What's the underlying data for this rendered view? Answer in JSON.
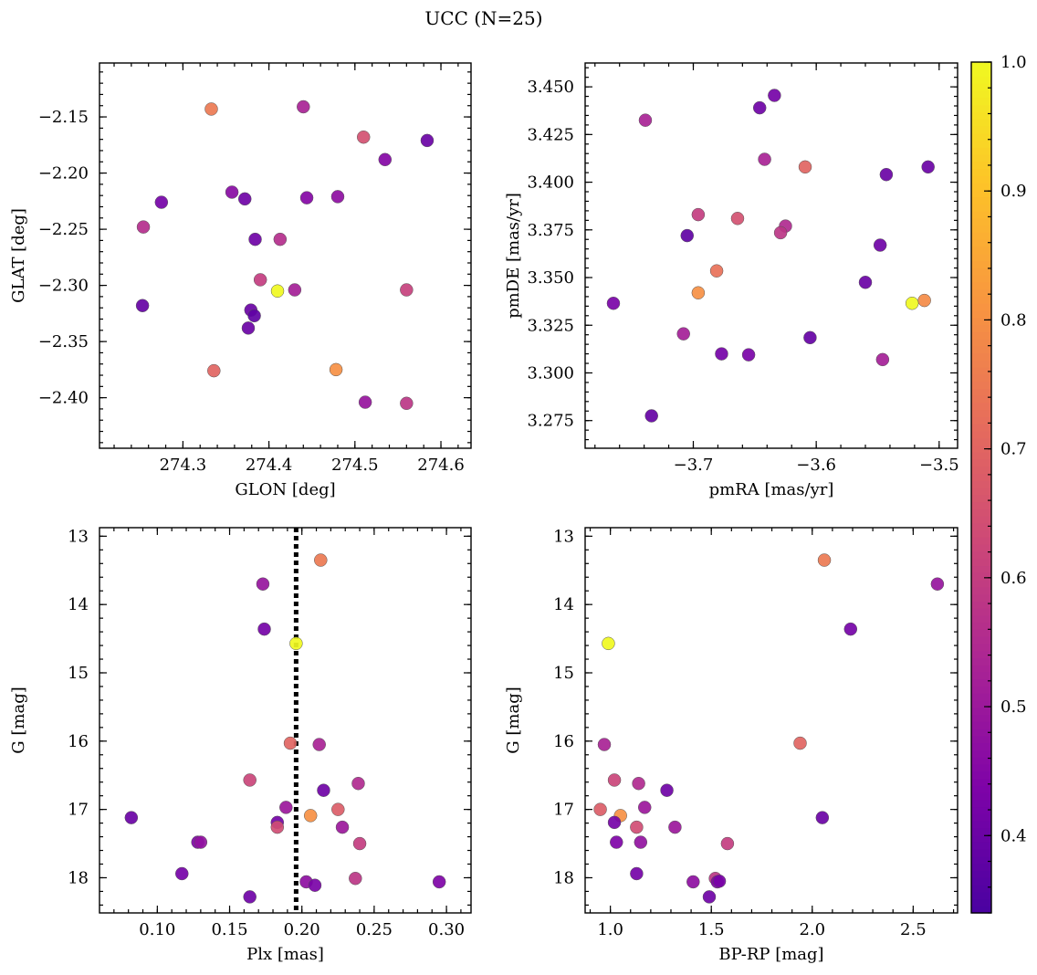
{
  "suptitle": "UCC (N=25)",
  "colorbar": {
    "cmap": "plasma",
    "range": [
      0.34,
      1.0
    ],
    "ticks": [
      0.4,
      0.5,
      0.6,
      0.7,
      0.8,
      0.9,
      1.0
    ],
    "tick_labels": [
      "0.4",
      "0.5",
      "0.6",
      "0.7",
      "0.8",
      "0.9",
      "1.0"
    ]
  },
  "chart_data": [
    {
      "type": "scatter",
      "xlabel": "GLON [deg]",
      "ylabel": "GLAT [deg]",
      "xlim": [
        274.203,
        274.635
      ],
      "ylim": [
        -2.445,
        -2.102
      ],
      "y_inverted": false,
      "xticks": [
        274.3,
        274.4,
        274.5,
        274.6
      ],
      "xtick_labels": [
        "274.3",
        "274.4",
        "274.5",
        "274.6"
      ],
      "yticks": [
        -2.15,
        -2.2,
        -2.25,
        -2.3,
        -2.35,
        -2.4
      ],
      "ytick_labels": [
        "−2.15",
        "−2.20",
        "−2.25",
        "−2.30",
        "−2.35",
        "−2.40"
      ],
      "points": [
        {
          "x": 274.333,
          "y": -2.143,
          "c": 0.75
        },
        {
          "x": 274.44,
          "y": -2.141,
          "c": 0.53
        },
        {
          "x": 274.51,
          "y": -2.168,
          "c": 0.65
        },
        {
          "x": 274.584,
          "y": -2.171,
          "c": 0.4
        },
        {
          "x": 274.535,
          "y": -2.188,
          "c": 0.45
        },
        {
          "x": 274.357,
          "y": -2.217,
          "c": 0.46
        },
        {
          "x": 274.372,
          "y": -2.223,
          "c": 0.41
        },
        {
          "x": 274.444,
          "y": -2.222,
          "c": 0.45
        },
        {
          "x": 274.48,
          "y": -2.221,
          "c": 0.47
        },
        {
          "x": 274.275,
          "y": -2.226,
          "c": 0.42
        },
        {
          "x": 274.254,
          "y": -2.248,
          "c": 0.56
        },
        {
          "x": 274.384,
          "y": -2.259,
          "c": 0.41
        },
        {
          "x": 274.413,
          "y": -2.259,
          "c": 0.56
        },
        {
          "x": 274.39,
          "y": -2.295,
          "c": 0.6
        },
        {
          "x": 274.41,
          "y": -2.305,
          "c": 1.0
        },
        {
          "x": 274.43,
          "y": -2.304,
          "c": 0.52
        },
        {
          "x": 274.56,
          "y": -2.304,
          "c": 0.61
        },
        {
          "x": 274.253,
          "y": -2.318,
          "c": 0.39
        },
        {
          "x": 274.379,
          "y": -2.322,
          "c": 0.4
        },
        {
          "x": 274.383,
          "y": -2.327,
          "c": 0.38
        },
        {
          "x": 274.376,
          "y": -2.338,
          "c": 0.4
        },
        {
          "x": 274.336,
          "y": -2.376,
          "c": 0.7
        },
        {
          "x": 274.478,
          "y": -2.375,
          "c": 0.8
        },
        {
          "x": 274.512,
          "y": -2.404,
          "c": 0.49
        },
        {
          "x": 274.56,
          "y": -2.405,
          "c": 0.58
        }
      ]
    },
    {
      "type": "scatter",
      "xlabel": "pmRA [mas/yr]",
      "ylabel": "pmDE [mas/yr]",
      "xlim": [
        -3.788,
        -3.485
      ],
      "ylim": [
        3.2605,
        3.4625
      ],
      "y_inverted": false,
      "xticks": [
        -3.7,
        -3.6,
        -3.5
      ],
      "xtick_labels": [
        "−3.7",
        "−3.6",
        "−3.5"
      ],
      "yticks": [
        3.275,
        3.3,
        3.325,
        3.35,
        3.375,
        3.4,
        3.425,
        3.45
      ],
      "ytick_labels": [
        "3.275",
        "3.300",
        "3.325",
        "3.350",
        "3.375",
        "3.400",
        "3.425",
        "3.450"
      ],
      "points": [
        {
          "x": -3.634,
          "y": 3.4455,
          "c": 0.42
        },
        {
          "x": -3.646,
          "y": 3.439,
          "c": 0.41
        },
        {
          "x": -3.739,
          "y": 3.4325,
          "c": 0.53
        },
        {
          "x": -3.642,
          "y": 3.412,
          "c": 0.53
        },
        {
          "x": -3.609,
          "y": 3.408,
          "c": 0.7
        },
        {
          "x": -3.509,
          "y": 3.408,
          "c": 0.4
        },
        {
          "x": -3.543,
          "y": 3.404,
          "c": 0.4
        },
        {
          "x": -3.696,
          "y": 3.383,
          "c": 0.6
        },
        {
          "x": -3.664,
          "y": 3.381,
          "c": 0.65
        },
        {
          "x": -3.625,
          "y": 3.377,
          "c": 0.55
        },
        {
          "x": -3.629,
          "y": 3.3735,
          "c": 0.58
        },
        {
          "x": -3.705,
          "y": 3.372,
          "c": 0.38
        },
        {
          "x": -3.548,
          "y": 3.367,
          "c": 0.41
        },
        {
          "x": -3.681,
          "y": 3.3535,
          "c": 0.73
        },
        {
          "x": -3.56,
          "y": 3.3475,
          "c": 0.4
        },
        {
          "x": -3.696,
          "y": 3.342,
          "c": 0.8
        },
        {
          "x": -3.512,
          "y": 3.338,
          "c": 0.79
        },
        {
          "x": -3.522,
          "y": 3.3365,
          "c": 1.0
        },
        {
          "x": -3.765,
          "y": 3.3365,
          "c": 0.43
        },
        {
          "x": -3.708,
          "y": 3.3205,
          "c": 0.52
        },
        {
          "x": -3.605,
          "y": 3.3185,
          "c": 0.39
        },
        {
          "x": -3.677,
          "y": 3.31,
          "c": 0.42
        },
        {
          "x": -3.655,
          "y": 3.3095,
          "c": 0.43
        },
        {
          "x": -3.546,
          "y": 3.307,
          "c": 0.52
        },
        {
          "x": -3.734,
          "y": 3.2775,
          "c": 0.39
        }
      ]
    },
    {
      "type": "scatter",
      "xlabel": "Plx [mas]",
      "ylabel": "G [mag]",
      "xlim": [
        0.06,
        0.317
      ],
      "ylim": [
        18.515,
        12.875
      ],
      "y_inverted": true,
      "xticks": [
        0.1,
        0.15,
        0.2,
        0.25,
        0.3
      ],
      "xtick_labels": [
        "0.10",
        "0.15",
        "0.20",
        "0.25",
        "0.30"
      ],
      "yticks": [
        13,
        14,
        15,
        16,
        17,
        18
      ],
      "ytick_labels": [
        "13",
        "14",
        "15",
        "16",
        "17",
        "18"
      ],
      "vline": {
        "x": 0.196,
        "style": "dotted"
      },
      "points": [
        {
          "x": 0.213,
          "y": 13.35,
          "c": 0.75
        },
        {
          "x": 0.173,
          "y": 13.7,
          "c": 0.49
        },
        {
          "x": 0.174,
          "y": 14.36,
          "c": 0.42
        },
        {
          "x": 0.196,
          "y": 14.57,
          "c": 1.0
        },
        {
          "x": 0.192,
          "y": 16.03,
          "c": 0.7
        },
        {
          "x": 0.212,
          "y": 16.05,
          "c": 0.53
        },
        {
          "x": 0.164,
          "y": 16.57,
          "c": 0.62
        },
        {
          "x": 0.239,
          "y": 16.62,
          "c": 0.55
        },
        {
          "x": 0.215,
          "y": 16.72,
          "c": 0.41
        },
        {
          "x": 0.189,
          "y": 16.97,
          "c": 0.5
        },
        {
          "x": 0.225,
          "y": 17.0,
          "c": 0.68
        },
        {
          "x": 0.206,
          "y": 17.09,
          "c": 0.8
        },
        {
          "x": 0.082,
          "y": 17.12,
          "c": 0.4
        },
        {
          "x": 0.183,
          "y": 17.19,
          "c": 0.42
        },
        {
          "x": 0.183,
          "y": 17.26,
          "c": 0.64
        },
        {
          "x": 0.228,
          "y": 17.26,
          "c": 0.5
        },
        {
          "x": 0.128,
          "y": 17.48,
          "c": 0.44
        },
        {
          "x": 0.13,
          "y": 17.48,
          "c": 0.48
        },
        {
          "x": 0.24,
          "y": 17.5,
          "c": 0.6
        },
        {
          "x": 0.117,
          "y": 17.94,
          "c": 0.42
        },
        {
          "x": 0.237,
          "y": 18.01,
          "c": 0.58
        },
        {
          "x": 0.203,
          "y": 18.06,
          "c": 0.47
        },
        {
          "x": 0.295,
          "y": 18.06,
          "c": 0.44
        },
        {
          "x": 0.209,
          "y": 18.11,
          "c": 0.43
        },
        {
          "x": 0.164,
          "y": 18.28,
          "c": 0.41
        }
      ]
    },
    {
      "type": "scatter",
      "xlabel": "BP-RP [mag]",
      "ylabel": "G [mag]",
      "xlim": [
        0.875,
        2.72
      ],
      "ylim": [
        18.515,
        12.875
      ],
      "y_inverted": true,
      "xticks": [
        1.0,
        1.5,
        2.0,
        2.5
      ],
      "xtick_labels": [
        "1.0",
        "1.5",
        "2.0",
        "2.5"
      ],
      "yticks": [
        13,
        14,
        15,
        16,
        17,
        18
      ],
      "ytick_labels": [
        "13",
        "14",
        "15",
        "16",
        "17",
        "18"
      ],
      "points": [
        {
          "x": 2.06,
          "y": 13.35,
          "c": 0.75
        },
        {
          "x": 2.62,
          "y": 13.7,
          "c": 0.49
        },
        {
          "x": 2.19,
          "y": 14.36,
          "c": 0.42
        },
        {
          "x": 0.99,
          "y": 14.57,
          "c": 1.0
        },
        {
          "x": 1.94,
          "y": 16.03,
          "c": 0.7
        },
        {
          "x": 0.97,
          "y": 16.05,
          "c": 0.53
        },
        {
          "x": 1.02,
          "y": 16.57,
          "c": 0.62
        },
        {
          "x": 1.14,
          "y": 16.62,
          "c": 0.55
        },
        {
          "x": 1.28,
          "y": 16.72,
          "c": 0.41
        },
        {
          "x": 1.17,
          "y": 16.97,
          "c": 0.5
        },
        {
          "x": 0.95,
          "y": 17.0,
          "c": 0.68
        },
        {
          "x": 1.05,
          "y": 17.09,
          "c": 0.8
        },
        {
          "x": 2.05,
          "y": 17.12,
          "c": 0.4
        },
        {
          "x": 1.02,
          "y": 17.19,
          "c": 0.42
        },
        {
          "x": 1.13,
          "y": 17.26,
          "c": 0.64
        },
        {
          "x": 1.32,
          "y": 17.26,
          "c": 0.5
        },
        {
          "x": 1.03,
          "y": 17.48,
          "c": 0.44
        },
        {
          "x": 1.15,
          "y": 17.48,
          "c": 0.48
        },
        {
          "x": 1.58,
          "y": 17.5,
          "c": 0.6
        },
        {
          "x": 1.13,
          "y": 17.94,
          "c": 0.42
        },
        {
          "x": 1.52,
          "y": 18.01,
          "c": 0.58
        },
        {
          "x": 1.41,
          "y": 18.06,
          "c": 0.47
        },
        {
          "x": 1.53,
          "y": 18.06,
          "c": 0.44
        },
        {
          "x": 1.54,
          "y": 18.05,
          "c": 0.43
        },
        {
          "x": 1.49,
          "y": 18.28,
          "c": 0.41
        }
      ]
    }
  ]
}
